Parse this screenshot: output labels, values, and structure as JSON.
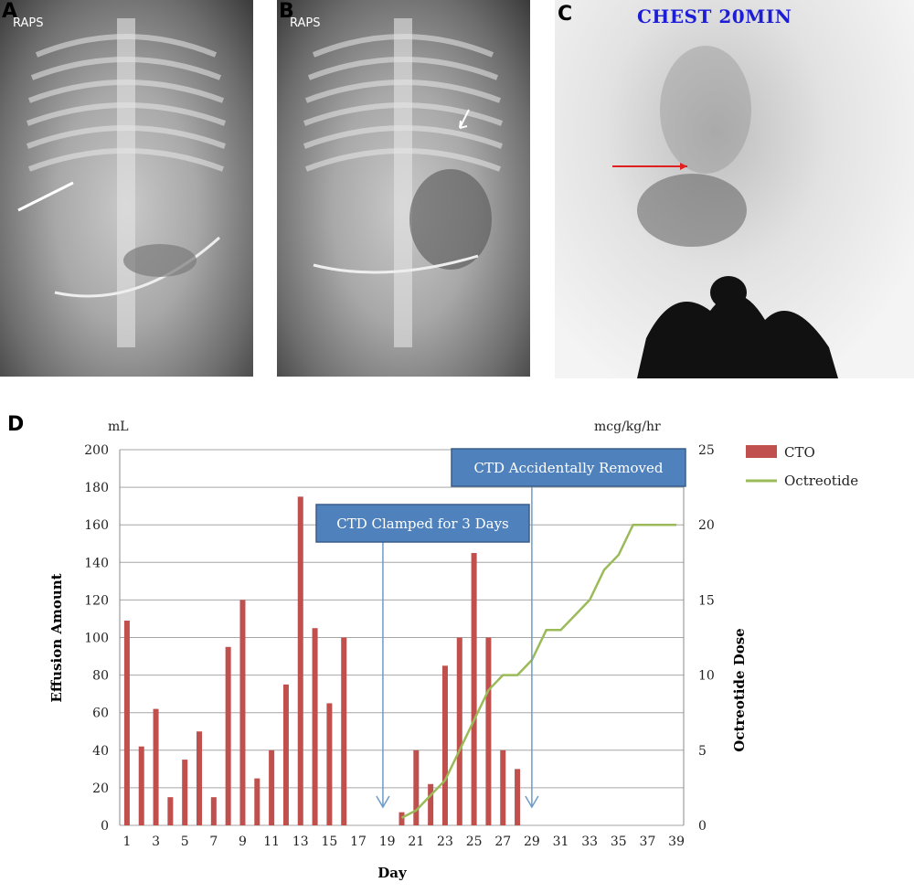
{
  "panels": {
    "a": {
      "letter": "A",
      "sub": "RAPS"
    },
    "b": {
      "letter": "B",
      "sub": "RAPS"
    },
    "c": {
      "letter": "C",
      "title": "CHEST 20MIN"
    },
    "d": {
      "letter": "D"
    }
  },
  "colors": {
    "cto": "#c0504d",
    "octreotide": "#9bbb59",
    "callout_fill": "#4f81bd",
    "annotation_arrow": "#e02020"
  },
  "chart_data": {
    "type": "bar",
    "ylabel": "Effusion Amount",
    "ylabel_unit": "mL",
    "y2label": "Octreotide Dose",
    "y2label_unit": "mcg/kg/hr",
    "xlabel": "Day",
    "ylim": [
      0,
      200
    ],
    "y2lim": [
      0,
      25
    ],
    "yticks": [
      0,
      20,
      40,
      60,
      80,
      100,
      120,
      140,
      160,
      180,
      200
    ],
    "y2ticks": [
      0,
      5,
      10,
      15,
      20,
      25
    ],
    "xticks": [
      1,
      3,
      5,
      7,
      9,
      11,
      13,
      15,
      17,
      19,
      21,
      23,
      25,
      27,
      29,
      31,
      33,
      35,
      37,
      39
    ],
    "xlim": [
      1,
      39
    ],
    "grid": true,
    "legend_position": "top-right",
    "series": [
      {
        "name": "CTO",
        "kind": "bar",
        "axis": "left",
        "points": [
          [
            1,
            109
          ],
          [
            2,
            42
          ],
          [
            3,
            62
          ],
          [
            4,
            15
          ],
          [
            5,
            35
          ],
          [
            6,
            50
          ],
          [
            7,
            15
          ],
          [
            8,
            95
          ],
          [
            9,
            120
          ],
          [
            10,
            25
          ],
          [
            11,
            40
          ],
          [
            12,
            75
          ],
          [
            13,
            175
          ],
          [
            14,
            105
          ],
          [
            15,
            65
          ],
          [
            16,
            100
          ],
          [
            20,
            7
          ],
          [
            21,
            40
          ],
          [
            22,
            22
          ],
          [
            23,
            85
          ],
          [
            24,
            100
          ],
          [
            25,
            145
          ],
          [
            26,
            100
          ],
          [
            27,
            40
          ],
          [
            28,
            30
          ]
        ]
      },
      {
        "name": "Octreotide",
        "kind": "line",
        "axis": "right",
        "points": [
          [
            20,
            0.5
          ],
          [
            21,
            1
          ],
          [
            22,
            2
          ],
          [
            23,
            3
          ],
          [
            24,
            5
          ],
          [
            25,
            7
          ],
          [
            26,
            9
          ],
          [
            27,
            10
          ],
          [
            28,
            10
          ],
          [
            29,
            11
          ],
          [
            30,
            13
          ],
          [
            31,
            13
          ],
          [
            32,
            14
          ],
          [
            33,
            15
          ],
          [
            34,
            17
          ],
          [
            35,
            18
          ],
          [
            36,
            20
          ],
          [
            37,
            20
          ],
          [
            38,
            20
          ],
          [
            39,
            20
          ]
        ]
      }
    ],
    "annotations": [
      {
        "label": "CTD Clamped for 3 Days",
        "day": 18.7
      },
      {
        "label": "CTD Accidentally Removed",
        "day": 29
      }
    ]
  }
}
